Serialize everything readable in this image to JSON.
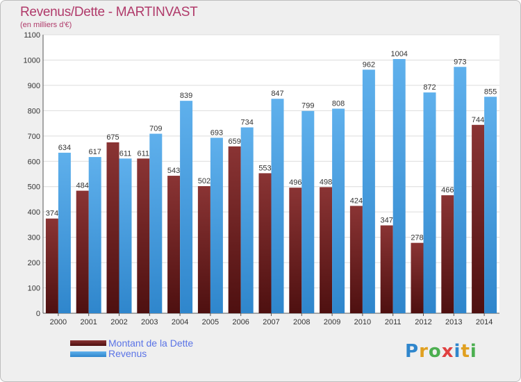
{
  "title": "Revenus/Dette - MARTINVAST",
  "subtitle": "(en milliers d'€)",
  "logo_text": "Proxiti",
  "colors": {
    "dette": "#7a2a2a",
    "revenus": "#4a9fe0",
    "title": "#b03a6a",
    "legend_text": "#5a73e6",
    "background": "#efefef"
  },
  "chart_data": {
    "type": "bar",
    "title": "Revenus/Dette - MARTINVAST",
    "subtitle": "(en milliers d'€)",
    "categories": [
      "2000",
      "2001",
      "2002",
      "2003",
      "2004",
      "2005",
      "2006",
      "2007",
      "2008",
      "2009",
      "2010",
      "2011",
      "2012",
      "2013",
      "2014"
    ],
    "series": [
      {
        "name": "Montant de la Dette",
        "values": [
          374,
          484,
          675,
          611,
          543,
          502,
          659,
          553,
          496,
          498,
          424,
          347,
          278,
          466,
          744
        ]
      },
      {
        "name": "Revenus",
        "values": [
          634,
          617,
          611,
          709,
          839,
          693,
          734,
          847,
          799,
          808,
          962,
          1004,
          872,
          973,
          855
        ]
      }
    ],
    "ylim": [
      0,
      1100
    ],
    "yticks": [
      0,
      100,
      200,
      300,
      400,
      500,
      600,
      700,
      800,
      900,
      1000,
      1100
    ],
    "grid": true,
    "legend": "bottom-left"
  },
  "legend": [
    {
      "label": "Montant de la Dette"
    },
    {
      "label": "Revenus"
    }
  ]
}
